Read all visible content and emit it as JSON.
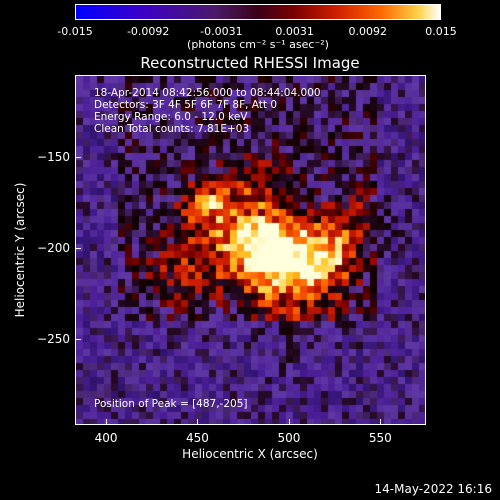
{
  "chart_data": {
    "type": "heatmap",
    "title": "Reconstructed RHESSI Image",
    "xlabel": "Heliocentric X (arcsec)",
    "ylabel": "Heliocentric Y (arcsec)",
    "xlim": [
      383,
      575
    ],
    "ylim": [
      -297,
      -105
    ],
    "x_ticks": [
      "400",
      "450",
      "500",
      "550"
    ],
    "y_ticks": [
      "-150",
      "-200",
      "-250"
    ],
    "colorbar": {
      "ticks": [
        "-0.015",
        "-0.0092",
        "-0.0031",
        "0.0031",
        "0.0092",
        "0.015"
      ],
      "unit_label": "(photons cm⁻² s⁻¹ asec⁻²)",
      "range": [
        -0.015,
        0.015
      ]
    },
    "annotations": {
      "time_range": "18-Apr-2014 08:42:56.000 to 08:44:04.000",
      "detectors": "Detectors: 3F 4F 5F 6F 7F 8F, Att 0",
      "energy": "Energy Range: 6.0 - 12.0 keV",
      "clean": "Clean     Total counts: 7.81E+03",
      "peak": "Position of Peak = [487,-205]"
    },
    "peak_position": [
      487,
      -205
    ]
  },
  "footer": {
    "date": "14-May-2022 16:16"
  }
}
